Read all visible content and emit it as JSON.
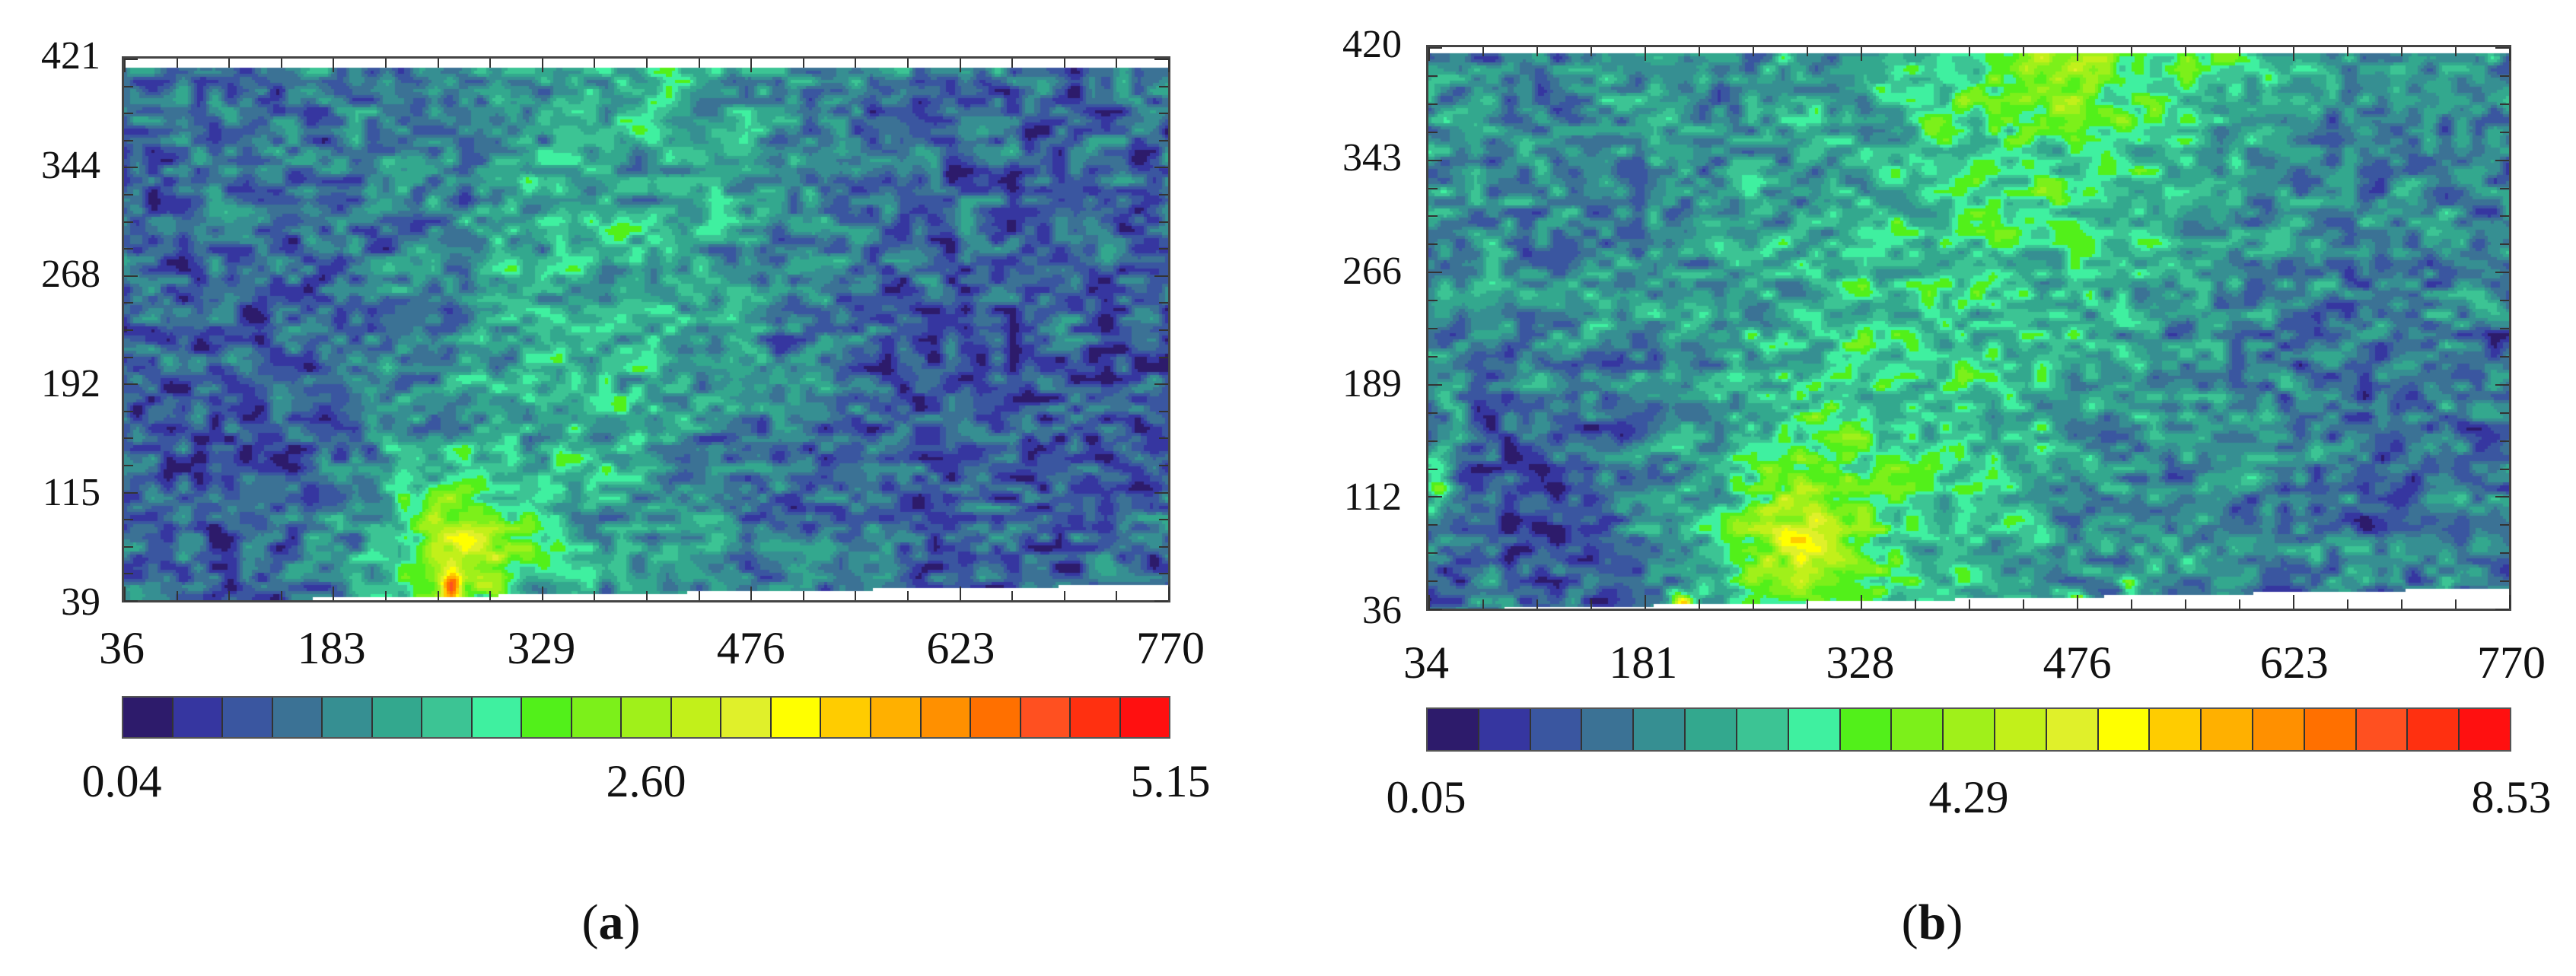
{
  "chart_data": [
    {
      "type": "heatmap",
      "panel_label": "a",
      "x_ticks": [
        "36",
        "183",
        "329",
        "476",
        "623",
        "770"
      ],
      "xlim": [
        36,
        770
      ],
      "y_ticks": [
        "421",
        "344",
        "268",
        "192",
        "115",
        "39"
      ],
      "ylim": [
        39,
        421
      ],
      "colorbar": {
        "range": [
          0.04,
          5.15
        ],
        "tick_labels": [
          "0.04",
          "2.60",
          "5.15"
        ],
        "levels": 21
      }
    },
    {
      "type": "heatmap",
      "panel_label": "b",
      "x_ticks": [
        "34",
        "181",
        "328",
        "476",
        "623",
        "770"
      ],
      "xlim": [
        34,
        770
      ],
      "y_ticks": [
        "420",
        "343",
        "266",
        "189",
        "112",
        "36"
      ],
      "ylim": [
        36,
        420
      ],
      "colorbar": {
        "range": [
          0.05,
          8.53
        ],
        "tick_labels": [
          "0.05",
          "4.29",
          "8.53"
        ],
        "levels": 21
      }
    }
  ],
  "colorscale": [
    "#2d1b6b",
    "#3636a0",
    "#3a56a0",
    "#3b7295",
    "#368f92",
    "#33a88e",
    "#3cc494",
    "#3ff0a0",
    "#52f01a",
    "#7cf01a",
    "#a0f01a",
    "#c2f01a",
    "#e0f02a",
    "#ffff00",
    "#ffcc00",
    "#ffb000",
    "#ff9000",
    "#ff7000",
    "#ff5020",
    "#ff3010",
    "#ff1010"
  ],
  "frame_color": "#444444"
}
